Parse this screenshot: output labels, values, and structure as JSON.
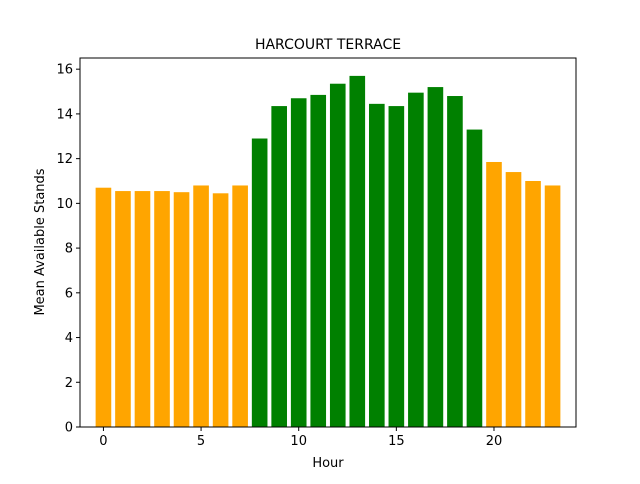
{
  "chart_data": {
    "type": "bar",
    "title": "HARCOURT TERRACE",
    "xlabel": "Hour",
    "ylabel": "Mean Available Stands",
    "x": [
      0,
      1,
      2,
      3,
      4,
      5,
      6,
      7,
      8,
      9,
      10,
      11,
      12,
      13,
      14,
      15,
      16,
      17,
      18,
      19,
      20,
      21,
      22,
      23
    ],
    "values": [
      10.7,
      10.55,
      10.55,
      10.55,
      10.5,
      10.8,
      10.45,
      10.8,
      12.9,
      14.35,
      14.7,
      14.85,
      15.35,
      15.7,
      14.45,
      14.35,
      14.95,
      15.2,
      14.8,
      13.3,
      11.85,
      11.4,
      11.0,
      10.8
    ],
    "bar_colors": [
      "#ffa500",
      "#ffa500",
      "#ffa500",
      "#ffa500",
      "#ffa500",
      "#ffa500",
      "#ffa500",
      "#ffa500",
      "#008000",
      "#008000",
      "#008000",
      "#008000",
      "#008000",
      "#008000",
      "#008000",
      "#008000",
      "#008000",
      "#008000",
      "#008000",
      "#008000",
      "#ffa500",
      "#ffa500",
      "#ffa500",
      "#ffa500"
    ],
    "xlim": [
      -1.2,
      24.2
    ],
    "ylim": [
      0,
      16.5
    ],
    "xticks": [
      0,
      5,
      10,
      15,
      20
    ],
    "yticks": [
      0,
      2,
      4,
      6,
      8,
      10,
      12,
      14,
      16
    ],
    "grid": false
  }
}
